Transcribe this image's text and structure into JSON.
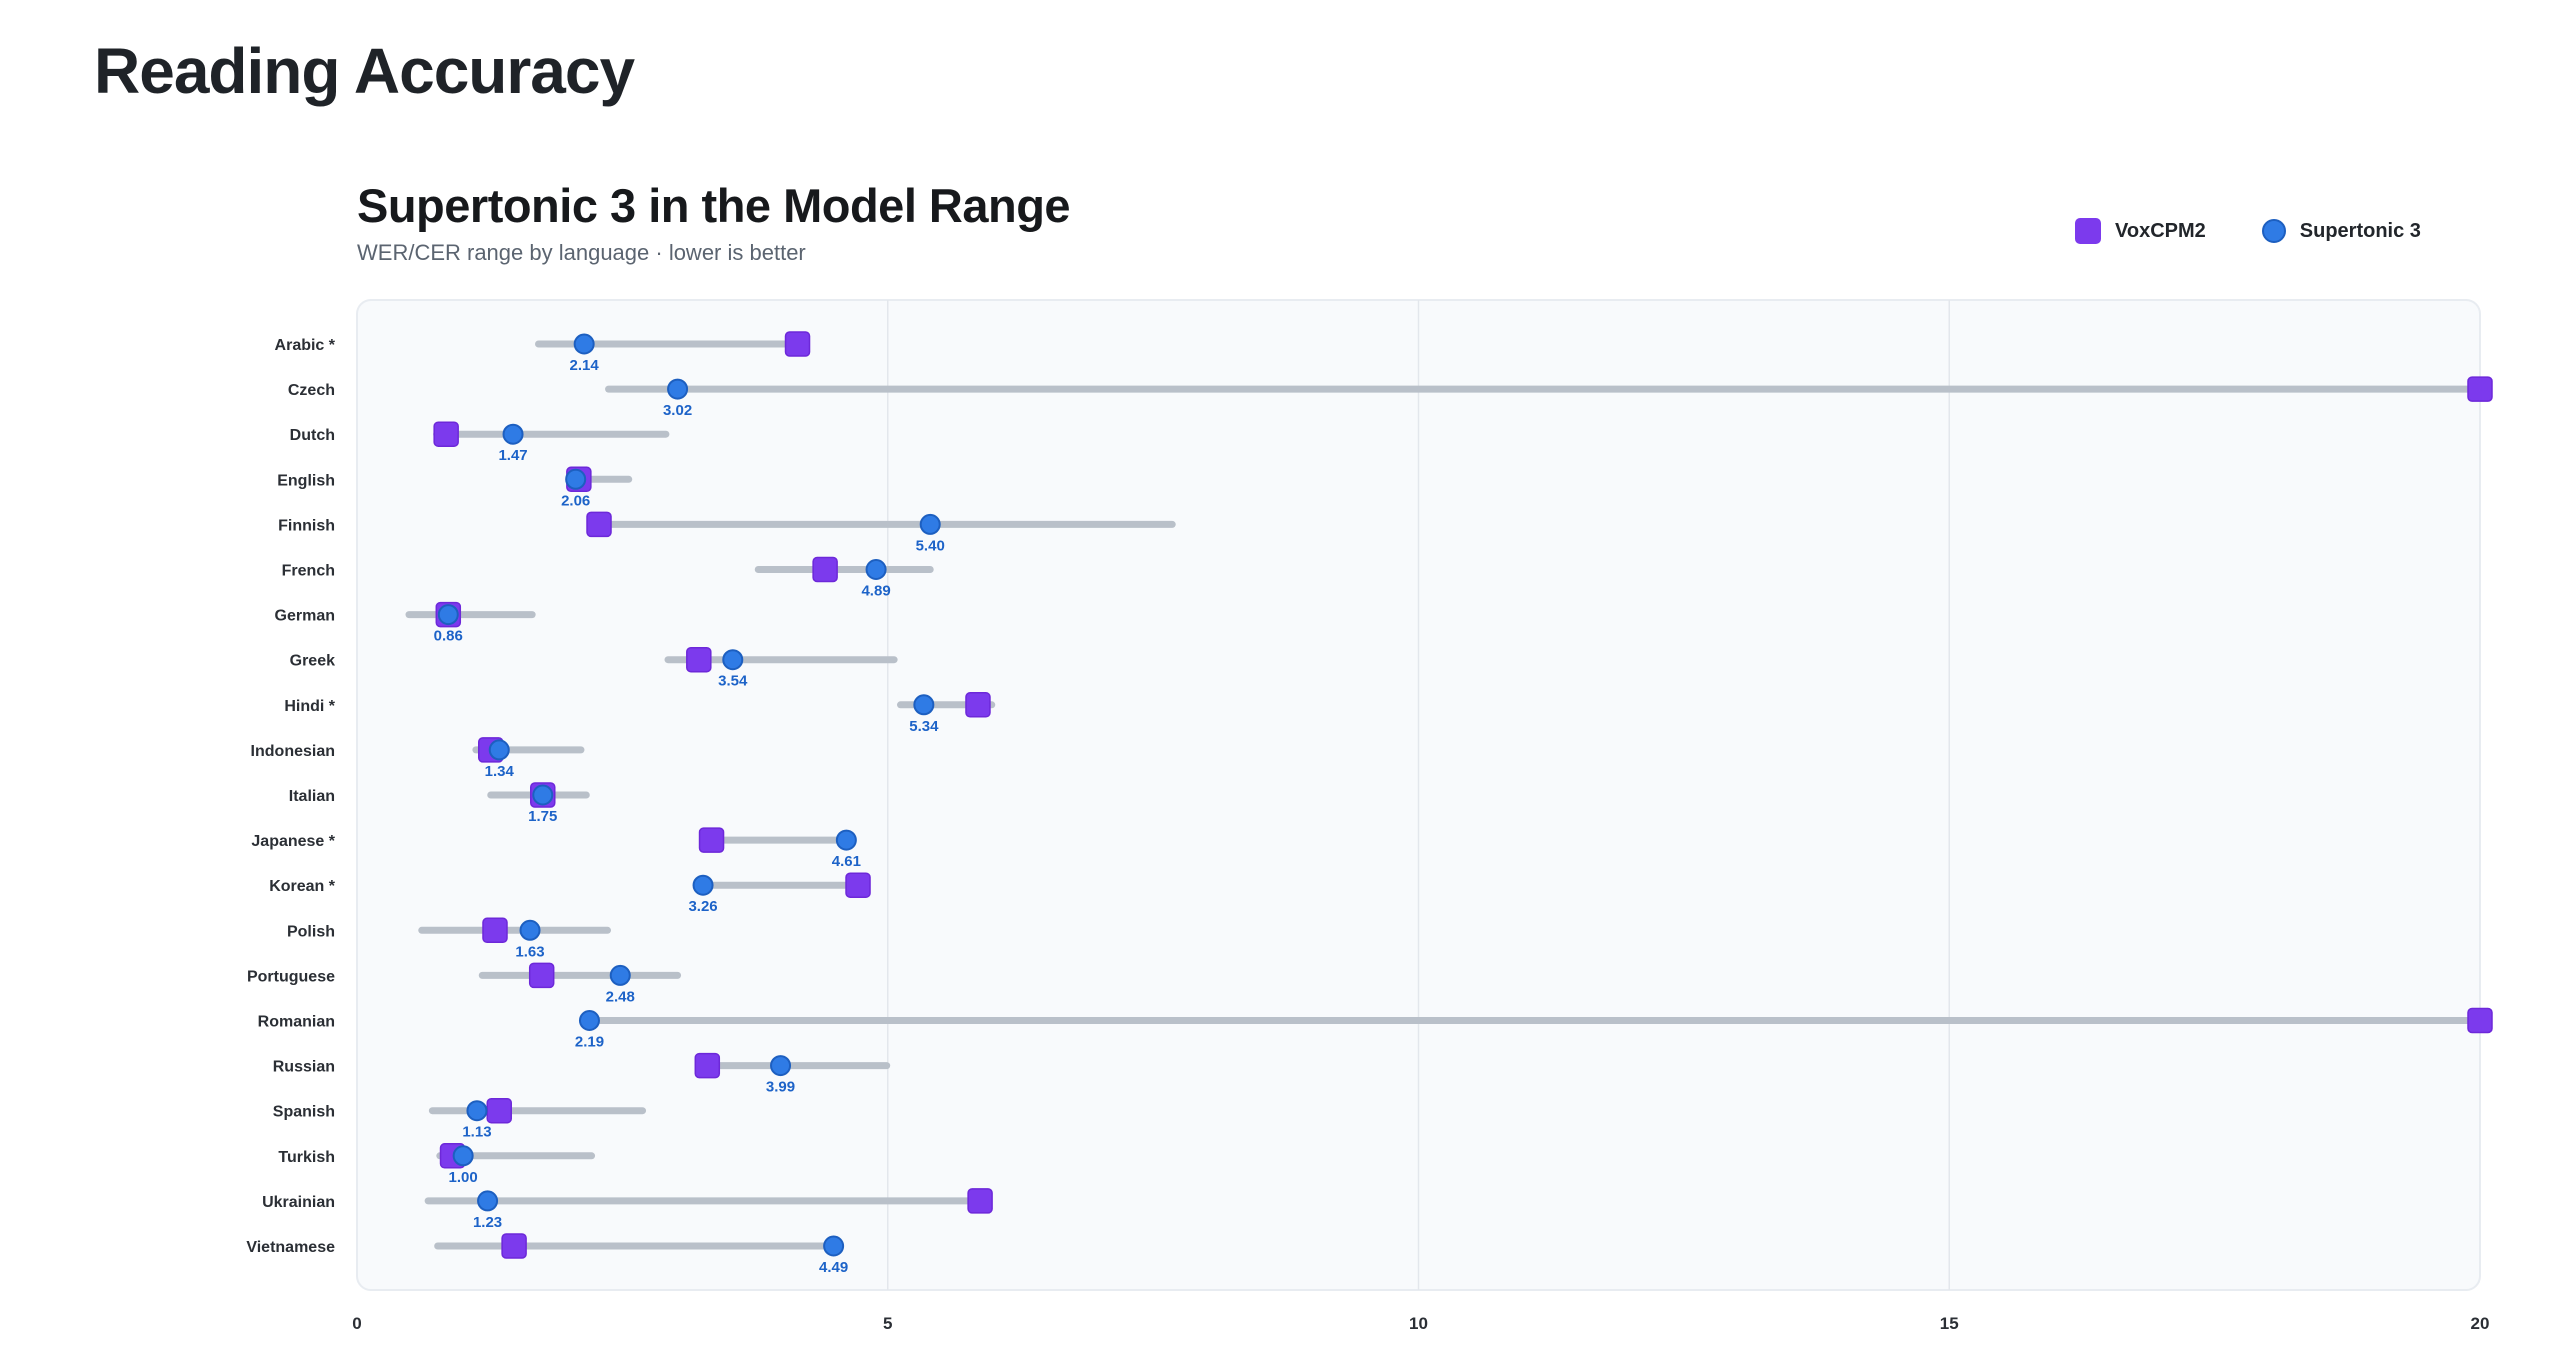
{
  "page": {
    "title": "Reading Accuracy"
  },
  "chart": {
    "title": "Supertonic 3 in the Model Range",
    "subtitle": "WER/CER range by language · lower is better",
    "legend": [
      {
        "name": "VoxCPM2",
        "shape": "square",
        "color": "#7c3aed"
      },
      {
        "name": "Supertonic 3",
        "shape": "circle",
        "color": "#2f7be5"
      }
    ]
  },
  "chart_data": {
    "type": "dumbbell",
    "title": "Supertonic 3 in the Model Range",
    "subtitle": "WER/CER range by language · lower is better",
    "xlim": [
      0,
      20
    ],
    "x_ticks": [
      0,
      5,
      10,
      15,
      20
    ],
    "grid": true,
    "legend_position": "top-right",
    "categories": [
      "Arabic *",
      "Czech",
      "Dutch",
      "English",
      "Finnish",
      "French",
      "German",
      "Greek",
      "Hindi *",
      "Indonesian",
      "Italian",
      "Japanese *",
      "Korean *",
      "Polish",
      "Portuguese",
      "Romanian",
      "Russian",
      "Spanish",
      "Turkish",
      "Ukrainian",
      "Vietnamese"
    ],
    "range_min": [
      1.71,
      2.37,
      0.75,
      2.0,
      2.28,
      3.78,
      0.49,
      2.93,
      5.12,
      1.12,
      1.26,
      3.34,
      3.26,
      0.61,
      1.18,
      2.19,
      3.3,
      0.71,
      0.78,
      0.67,
      0.76
    ],
    "range_max": [
      4.15,
      20.0,
      2.91,
      2.56,
      7.68,
      5.4,
      1.65,
      5.06,
      5.98,
      2.11,
      2.16,
      4.61,
      4.72,
      2.36,
      3.02,
      20.0,
      4.99,
      2.69,
      2.21,
      5.87,
      4.49
    ],
    "series": [
      {
        "name": "VoxCPM2",
        "marker": "square",
        "color": "#7c3aed",
        "values": [
          4.15,
          20.0,
          0.84,
          2.09,
          2.28,
          4.41,
          0.86,
          3.22,
          5.85,
          1.26,
          1.75,
          3.34,
          4.72,
          1.3,
          1.74,
          20.0,
          3.3,
          1.34,
          0.9,
          5.87,
          1.48
        ]
      },
      {
        "name": "Supertonic 3",
        "marker": "circle",
        "color": "#2f7be5",
        "values": [
          2.14,
          3.02,
          1.47,
          2.06,
          5.4,
          4.89,
          0.86,
          3.54,
          5.34,
          1.34,
          1.75,
          4.61,
          3.26,
          1.63,
          2.48,
          2.19,
          3.99,
          1.13,
          1.0,
          1.23,
          4.49
        ],
        "labels": [
          "2.14",
          "3.02",
          "1.47",
          "2.06",
          "5.40",
          "4.89",
          "0.86",
          "3.54",
          "5.34",
          "1.34",
          "1.75",
          "4.61",
          "3.26",
          "1.63",
          "2.48",
          "2.19",
          "3.99",
          "1.13",
          "1.00",
          "1.23",
          "4.49"
        ]
      }
    ]
  }
}
